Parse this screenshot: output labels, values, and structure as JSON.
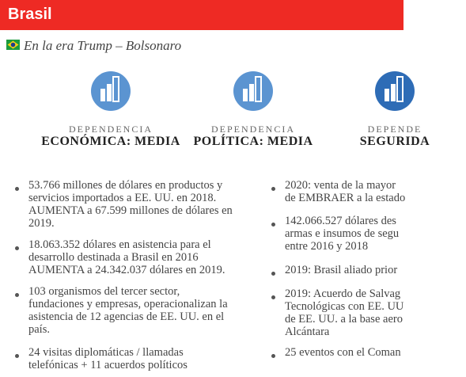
{
  "header": {
    "title": "Brasil"
  },
  "subtitle": "En la era Trump – Bolsonaro",
  "indicators": [
    {
      "label": "DEPENDENCIA",
      "value": "ECONÓMICA: MEDIA"
    },
    {
      "label": "DEPENDENCIA",
      "value": "POLÍTICA: MEDIA"
    },
    {
      "label": "DEPENDE",
      "value": "SEGURIDA"
    }
  ],
  "columns": [
    [
      [
        "53.766 millones de dólares en productos y",
        "servicios importados a EE. UU. en 2018.",
        "AUMENTA a 67.599 millones de dólares en",
        "2019."
      ],
      [
        "18.063.352 dólares en asistencia para el",
        "desarrollo destinada a Brasil en 2016",
        "AUMENTA a 24.342.037 dólares en 2019."
      ],
      [
        "103 organismos del tercer sector,",
        "fundaciones y empresas, operacionalizan la",
        "asistencia de 12 agencias de EE. UU. en el",
        "país."
      ],
      [
        "24 visitas diplomáticas / llamadas",
        "telefónicas + 11 acuerdos políticos"
      ]
    ],
    [
      [
        "2020: venta de la mayor",
        "de EMBRAER a la estado"
      ],
      [
        "142.066.527 dólares des",
        "armas e insumos de segu",
        "entre 2016 y 2018"
      ],
      [
        "2019: Brasil aliado prior"
      ],
      [
        "2019: Acuerdo de Salvag",
        "Tecnológicas con EE. UU",
        "de EE. UU. a la base aero",
        "Alcántara"
      ],
      [
        "25 eventos con el Coman"
      ]
    ]
  ]
}
